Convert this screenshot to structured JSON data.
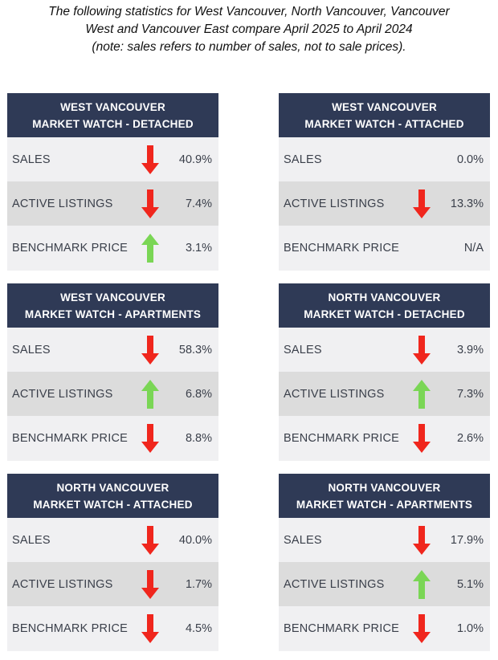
{
  "intro": {
    "line1": "The following statistics for West Vancouver, North Vancouver, Vancouver",
    "line2": "West and Vancouver East compare April 2025 to April 2024",
    "line3": "(note: sales refers to number of sales, not to sale prices)."
  },
  "colors": {
    "header": "#2f3a56",
    "down_arrow": "#f0261d",
    "up_arrow": "#7ad655"
  },
  "cards": [
    {
      "title1": "WEST VANCOUVER",
      "title2": "MARKET WATCH - DETACHED",
      "rows": [
        {
          "label": "SALES",
          "value": "40.9%",
          "trend": "down"
        },
        {
          "label": "ACTIVE LISTINGS",
          "value": "7.4%",
          "trend": "down"
        },
        {
          "label": "BENCHMARK PRICE",
          "value": "3.1%",
          "trend": "up"
        }
      ]
    },
    {
      "title1": "WEST VANCOUVER",
      "title2": "MARKET WATCH - ATTACHED",
      "rows": [
        {
          "label": "SALES",
          "value": "0.0%",
          "trend": "none"
        },
        {
          "label": "ACTIVE LISTINGS",
          "value": "13.3%",
          "trend": "down"
        },
        {
          "label": "BENCHMARK PRICE",
          "value": "N/A",
          "trend": "none"
        }
      ]
    },
    {
      "title1": "WEST VANCOUVER",
      "title2": "MARKET WATCH - APARTMENTS",
      "rows": [
        {
          "label": "SALES",
          "value": "58.3%",
          "trend": "down"
        },
        {
          "label": "ACTIVE LISTINGS",
          "value": "6.8%",
          "trend": "up"
        },
        {
          "label": "BENCHMARK PRICE",
          "value": "8.8%",
          "trend": "down"
        }
      ]
    },
    {
      "title1": "NORTH VANCOUVER",
      "title2": "MARKET WATCH - DETACHED",
      "rows": [
        {
          "label": "SALES",
          "value": "3.9%",
          "trend": "down"
        },
        {
          "label": "ACTIVE LISTINGS",
          "value": "7.3%",
          "trend": "up"
        },
        {
          "label": "BENCHMARK PRICE",
          "value": "2.6%",
          "trend": "down"
        }
      ]
    },
    {
      "title1": "NORTH VANCOUVER",
      "title2": "MARKET WATCH - ATTACHED",
      "rows": [
        {
          "label": "SALES",
          "value": "40.0%",
          "trend": "down"
        },
        {
          "label": "ACTIVE LISTINGS",
          "value": "1.7%",
          "trend": "down"
        },
        {
          "label": "BENCHMARK PRICE",
          "value": "4.5%",
          "trend": "down"
        }
      ]
    },
    {
      "title1": "NORTH VANCOUVER",
      "title2": "MARKET WATCH - APARTMENTS",
      "rows": [
        {
          "label": "SALES",
          "value": "17.9%",
          "trend": "down"
        },
        {
          "label": "ACTIVE LISTINGS",
          "value": "5.1%",
          "trend": "up"
        },
        {
          "label": "BENCHMARK PRICE",
          "value": "1.0%",
          "trend": "down"
        }
      ]
    }
  ]
}
